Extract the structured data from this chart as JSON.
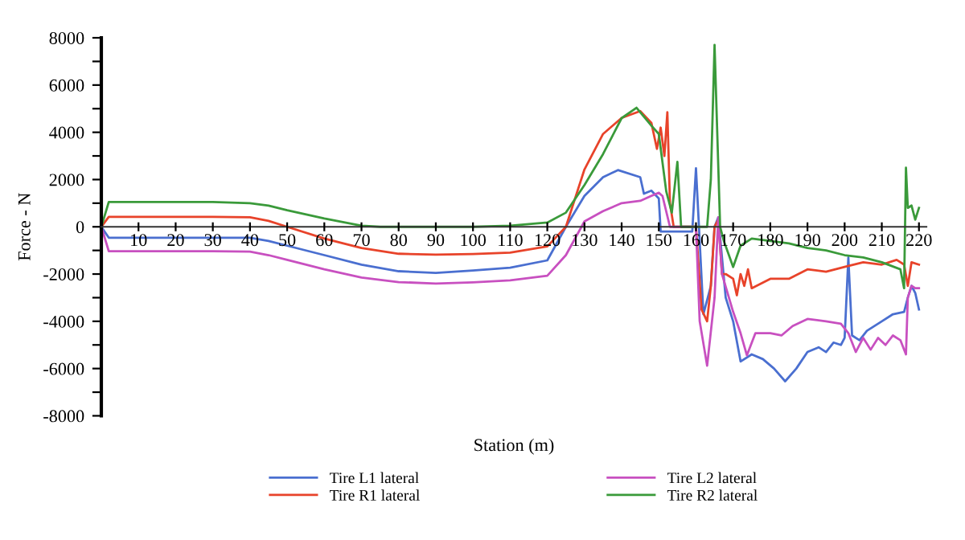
{
  "chart_data": {
    "type": "line",
    "xlabel": "Station (m)",
    "ylabel": "Force - N",
    "xlim": [
      0,
      222
    ],
    "ylim": [
      -8000,
      8000
    ],
    "xticks": [
      10,
      20,
      30,
      40,
      50,
      60,
      70,
      80,
      90,
      100,
      110,
      120,
      130,
      140,
      150,
      160,
      170,
      180,
      190,
      200,
      210,
      220
    ],
    "yticks": [
      -8000,
      {
        "value": -7000,
        "label": null
      },
      -6000,
      {
        "value": -5000,
        "label": null
      },
      -4000,
      {
        "value": -3000,
        "label": null
      },
      -2000,
      {
        "value": -1000,
        "label": null
      },
      0,
      {
        "value": 1000,
        "label": null
      },
      2000,
      {
        "value": 3000,
        "label": null
      },
      4000,
      {
        "value": 5000,
        "label": null
      },
      6000,
      {
        "value": 7000,
        "label": null
      },
      8000
    ],
    "grid": false,
    "legend": "bottom",
    "line_style": "solid",
    "series": [
      {
        "name": "Tire L1 lateral",
        "color": "#4a6fd0",
        "marker": "none",
        "x": [
          0,
          2,
          10,
          20,
          30,
          40,
          45,
          50,
          60,
          70,
          80,
          90,
          100,
          110,
          120,
          125,
          130,
          135,
          139,
          145,
          146,
          148,
          150,
          150.5,
          155,
          159,
          160,
          162,
          164,
          165,
          166,
          168,
          170,
          172,
          175,
          178,
          181,
          184,
          187,
          190,
          193,
          195,
          197,
          199,
          200,
          201,
          202,
          204,
          206,
          210,
          213,
          216,
          217,
          218,
          219,
          220
        ],
        "values": [
          0,
          -460,
          -460,
          -460,
          -460,
          -460,
          -600,
          -800,
          -1200,
          -1600,
          -1880,
          -1950,
          -1850,
          -1730,
          -1420,
          0,
          1310,
          2100,
          2400,
          2100,
          1400,
          1530,
          1200,
          -200,
          -200,
          -200,
          2480,
          -3700,
          -2500,
          0,
          400,
          -3000,
          -4000,
          -5700,
          -5400,
          -5600,
          -6000,
          -6540,
          -6000,
          -5300,
          -5100,
          -5300,
          -4900,
          -5000,
          -4700,
          -1300,
          -4600,
          -4800,
          -4400,
          -4000,
          -3700,
          -3600,
          -3000,
          -2500,
          -2800,
          -3500
        ]
      },
      {
        "name": "Tire R1 lateral",
        "color": "#e8432a",
        "x": [
          0,
          2,
          10,
          20,
          30,
          40,
          45,
          50,
          60,
          70,
          80,
          90,
          100,
          110,
          120,
          125,
          130,
          135,
          140,
          145,
          148,
          149.5,
          150.5,
          151.5,
          152.3,
          153,
          154,
          160,
          161.5,
          163,
          164,
          165,
          166,
          167,
          168,
          170,
          171,
          172,
          173,
          174,
          175,
          180,
          185,
          190,
          195,
          200,
          205,
          210,
          214,
          216,
          217,
          218,
          220
        ],
        "values": [
          0,
          420,
          420,
          420,
          420,
          400,
          250,
          0,
          -500,
          -900,
          -1140,
          -1180,
          -1150,
          -1090,
          -830,
          0,
          2430,
          3930,
          4610,
          4900,
          4400,
          3300,
          4200,
          3000,
          4850,
          1000,
          0,
          0,
          -3500,
          -4000,
          -2500,
          0,
          300,
          -2000,
          -2000,
          -2200,
          -2900,
          -2000,
          -2500,
          -1800,
          -2600,
          -2200,
          -2200,
          -1800,
          -1900,
          -1700,
          -1500,
          -1600,
          -1400,
          -1600,
          -2500,
          -1500,
          -1600
        ]
      },
      {
        "name": "Tire L2 lateral",
        "color": "#c850c0",
        "x": [
          0,
          2,
          10,
          20,
          30,
          40,
          45,
          50,
          60,
          70,
          80,
          90,
          100,
          110,
          120,
          125,
          130,
          135,
          140,
          145,
          148,
          150,
          151,
          153,
          160,
          161,
          163,
          165,
          166,
          167,
          170,
          172,
          173.7,
          176,
          180,
          183,
          186,
          190,
          195,
          199,
          201,
          203,
          205,
          207,
          209,
          211,
          213,
          215,
          216.5,
          217,
          218,
          219,
          220
        ],
        "values": [
          0,
          -1030,
          -1030,
          -1030,
          -1030,
          -1050,
          -1200,
          -1400,
          -1800,
          -2150,
          -2340,
          -2400,
          -2350,
          -2270,
          -2070,
          -1200,
          230,
          660,
          1000,
          1100,
          1310,
          1440,
          1300,
          0,
          0,
          -4000,
          -5880,
          -3000,
          400,
          -2000,
          -3600,
          -4500,
          -5440,
          -4500,
          -4500,
          -4600,
          -4200,
          -3900,
          -4000,
          -4100,
          -4500,
          -5300,
          -4700,
          -5200,
          -4700,
          -5000,
          -4600,
          -4800,
          -5400,
          -3000,
          -2500,
          -2600,
          -2600
        ]
      },
      {
        "name": "Tire R2 lateral",
        "color": "#3a9a3a",
        "x": [
          0,
          2,
          10,
          20,
          30,
          40,
          45,
          50,
          60,
          70,
          75,
          80,
          90,
          100,
          110,
          120,
          125,
          130,
          135,
          140,
          144,
          148,
          150,
          152,
          153.5,
          155,
          156,
          163,
          164,
          165,
          166.5,
          167.5,
          170,
          172,
          175,
          180,
          185,
          190,
          195,
          200,
          205,
          210,
          215,
          216,
          216.5,
          217,
          218,
          219,
          220
        ],
        "values": [
          0,
          1050,
          1050,
          1050,
          1050,
          1000,
          900,
          700,
          350,
          50,
          0,
          0,
          0,
          0,
          50,
          180,
          600,
          1770,
          3080,
          4600,
          5040,
          4280,
          3930,
          1500,
          600,
          2750,
          0,
          0,
          2000,
          7700,
          0,
          -600,
          -1700,
          -800,
          -500,
          -600,
          -700,
          -900,
          -1000,
          -1200,
          -1300,
          -1500,
          -1800,
          -2600,
          2500,
          800,
          900,
          300,
          800
        ]
      }
    ]
  }
}
